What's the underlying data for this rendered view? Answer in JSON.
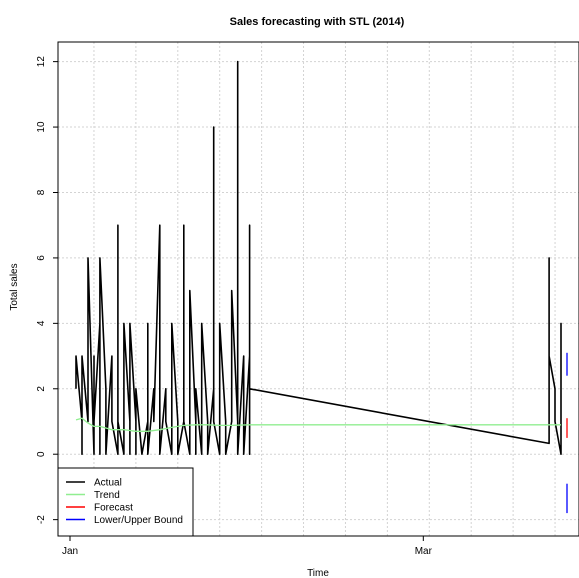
{
  "chart_data": {
    "type": "line",
    "title": "Sales forecasting with STL (2014)",
    "xlabel": "Time",
    "ylabel": "Total sales",
    "xlim": [
      "2014-01-01",
      "2014-03-27"
    ],
    "ylim": [
      -2.5,
      12.6
    ],
    "x_ticks": [
      {
        "date": "2014-01-01",
        "label": "Jan"
      },
      {
        "date": "2014-03-01",
        "label": "Mar"
      }
    ],
    "y_ticks": [
      -2,
      0,
      2,
      4,
      6,
      8,
      10,
      12
    ],
    "grid": true,
    "legend_position": "bottom-left",
    "legend": [
      {
        "label": "Actual",
        "color": "#000000"
      },
      {
        "label": "Trend",
        "color": "#90ee90"
      },
      {
        "label": "Forecast",
        "color": "#ff0000"
      },
      {
        "label": "Lower/Upper Bound",
        "color": "#0000ff"
      }
    ],
    "series": [
      {
        "name": "Actual",
        "color": "#000000",
        "points": [
          [
            "2014-01-02",
            2
          ],
          [
            "2014-01-02",
            3
          ],
          [
            "2014-01-03",
            1
          ],
          [
            "2014-01-03",
            0
          ],
          [
            "2014-01-03",
            3
          ],
          [
            "2014-01-04",
            1
          ],
          [
            "2014-01-04",
            6
          ],
          [
            "2014-01-05",
            0
          ],
          [
            "2014-01-05",
            3
          ],
          [
            "2014-01-05",
            1
          ],
          [
            "2014-01-06",
            4
          ],
          [
            "2014-01-06",
            0
          ],
          [
            "2014-01-06",
            6
          ],
          [
            "2014-01-07",
            2
          ],
          [
            "2014-01-07",
            0
          ],
          [
            "2014-01-08",
            3
          ],
          [
            "2014-01-08",
            1
          ],
          [
            "2014-01-09",
            0
          ],
          [
            "2014-01-09",
            7
          ],
          [
            "2014-01-09",
            1
          ],
          [
            "2014-01-10",
            0
          ],
          [
            "2014-01-10",
            4
          ],
          [
            "2014-01-11",
            1
          ],
          [
            "2014-01-11",
            0
          ],
          [
            "2014-01-11",
            4
          ],
          [
            "2014-01-12",
            1
          ],
          [
            "2014-01-12",
            0
          ],
          [
            "2014-01-12",
            2
          ],
          [
            "2014-01-13",
            0
          ],
          [
            "2014-01-14",
            1
          ],
          [
            "2014-01-14",
            4
          ],
          [
            "2014-01-14",
            0
          ],
          [
            "2014-01-15",
            2
          ],
          [
            "2014-01-15",
            1
          ],
          [
            "2014-01-16",
            7
          ],
          [
            "2014-01-16",
            0
          ],
          [
            "2014-01-17",
            2
          ],
          [
            "2014-01-17",
            1
          ],
          [
            "2014-01-18",
            0
          ],
          [
            "2014-01-18",
            4
          ],
          [
            "2014-01-19",
            1
          ],
          [
            "2014-01-19",
            0
          ],
          [
            "2014-01-20",
            1
          ],
          [
            "2014-01-20",
            7
          ],
          [
            "2014-01-20",
            1
          ],
          [
            "2014-01-21",
            0
          ],
          [
            "2014-01-21",
            2
          ],
          [
            "2014-01-21",
            5
          ],
          [
            "2014-01-22",
            1
          ],
          [
            "2014-01-22",
            0
          ],
          [
            "2014-01-22",
            2
          ],
          [
            "2014-01-23",
            0
          ],
          [
            "2014-01-23",
            4
          ],
          [
            "2014-01-24",
            1
          ],
          [
            "2014-01-24",
            0
          ],
          [
            "2014-01-25",
            2
          ],
          [
            "2014-01-25",
            10
          ],
          [
            "2014-01-25",
            1
          ],
          [
            "2014-01-26",
            0
          ],
          [
            "2014-01-26",
            4
          ],
          [
            "2014-01-27",
            1
          ],
          [
            "2014-01-27",
            0
          ],
          [
            "2014-01-28",
            1
          ],
          [
            "2014-01-28",
            5
          ],
          [
            "2014-01-29",
            1
          ],
          [
            "2014-01-29",
            12
          ],
          [
            "2014-01-29",
            0
          ],
          [
            "2014-01-30",
            3
          ],
          [
            "2014-01-30",
            1
          ],
          [
            "2014-01-30",
            0
          ],
          [
            "2014-01-31",
            3
          ],
          [
            "2014-01-31",
            0
          ],
          [
            "2014-01-31",
            7
          ],
          [
            "2014-01-31",
            2
          ],
          [
            "2014-03-22",
            0.33
          ],
          [
            "2014-03-22",
            5
          ],
          [
            "2014-03-22",
            6
          ],
          [
            "2014-03-22",
            3
          ],
          [
            "2014-03-23",
            2
          ],
          [
            "2014-03-23",
            1
          ],
          [
            "2014-03-24",
            0
          ],
          [
            "2014-03-24",
            4
          ],
          [
            "2014-03-24",
            2
          ],
          [
            "2014-03-24",
            0.3
          ]
        ]
      },
      {
        "name": "Trend",
        "color": "#90ee90",
        "points": [
          [
            "2014-01-02",
            1.05
          ],
          [
            "2014-01-03",
            1.1
          ],
          [
            "2014-01-04",
            0.95
          ],
          [
            "2014-01-05",
            0.85
          ],
          [
            "2014-01-06",
            0.85
          ],
          [
            "2014-01-07",
            0.8
          ],
          [
            "2014-01-08",
            0.75
          ],
          [
            "2014-01-10",
            0.75
          ],
          [
            "2014-01-12",
            0.7
          ],
          [
            "2014-01-14",
            0.7
          ],
          [
            "2014-01-16",
            0.75
          ],
          [
            "2014-01-18",
            0.82
          ],
          [
            "2014-01-20",
            0.88
          ],
          [
            "2014-01-22",
            0.9
          ],
          [
            "2014-01-24",
            0.9
          ],
          [
            "2014-01-26",
            0.88
          ],
          [
            "2014-01-28",
            0.88
          ],
          [
            "2014-01-31",
            0.9
          ],
          [
            "2014-03-24",
            0.9
          ]
        ]
      },
      {
        "name": "Forecast",
        "color": "#ff0000",
        "points": [
          [
            "2014-03-25",
            0.5
          ],
          [
            "2014-03-25",
            1.1
          ]
        ]
      },
      {
        "name": "Lower/Upper Bound",
        "color": "#0000ff",
        "segments": [
          [
            [
              "2014-03-25",
              2.4
            ],
            [
              "2014-03-25",
              3.1
            ]
          ],
          [
            [
              "2014-03-25",
              -0.9
            ],
            [
              "2014-03-25",
              -1.8
            ]
          ]
        ]
      }
    ]
  }
}
